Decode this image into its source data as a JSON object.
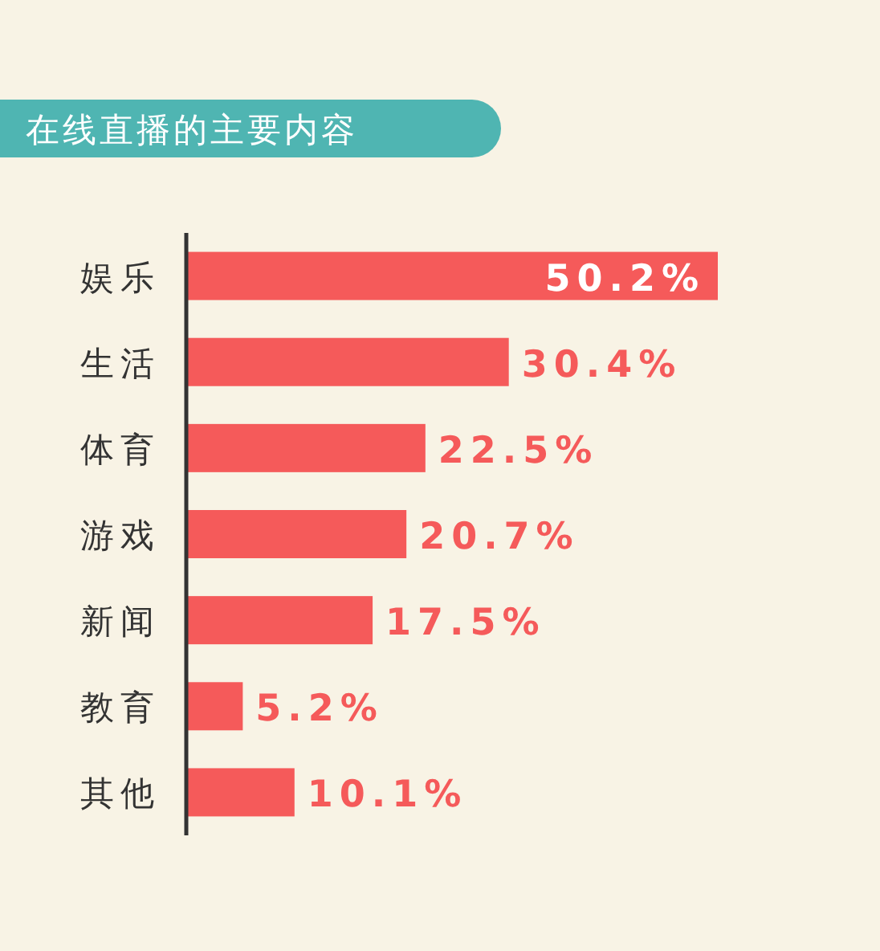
{
  "chart_data": {
    "type": "bar",
    "orientation": "horizontal",
    "title": "在线直播的主要内容",
    "categories": [
      "娱乐",
      "生活",
      "体育",
      "游戏",
      "新闻",
      "教育",
      "其他"
    ],
    "values": [
      50.2,
      30.4,
      22.5,
      20.7,
      17.5,
      5.2,
      10.1
    ],
    "value_labels": [
      "50.2%",
      "30.4%",
      "22.5%",
      "20.7%",
      "17.5%",
      "5.2%",
      "10.1%"
    ],
    "color": "#f55a5a"
  }
}
